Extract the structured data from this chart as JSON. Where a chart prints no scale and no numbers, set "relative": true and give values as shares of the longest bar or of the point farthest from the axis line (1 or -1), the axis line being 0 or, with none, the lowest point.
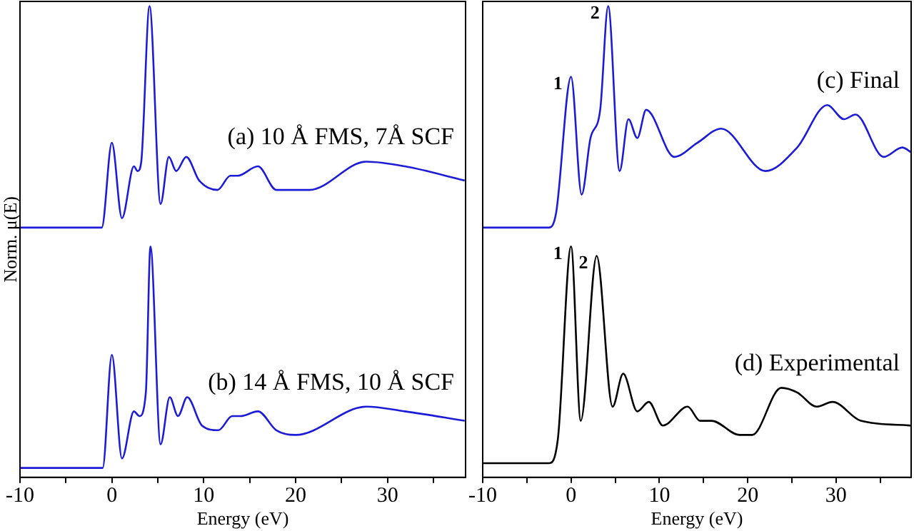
{
  "chart_data": [
    {
      "type": "line",
      "relative": true,
      "xlabel": "Energy (eV)",
      "ylabel": "Norm. μ(E)",
      "xlim": [
        -10,
        38.5
      ],
      "xticks": [
        -10,
        {
          "value": -5,
          "label": null
        },
        0,
        {
          "value": 5,
          "label": null
        },
        10,
        {
          "value": 15,
          "label": null
        },
        20,
        {
          "value": 25,
          "label": null
        },
        30,
        {
          "value": 35,
          "label": null
        }
      ],
      "tick_labels": "x",
      "series": [
        {
          "name": "(a) 10 Å FMS, 7Å SCF",
          "color": "#1c1cd8",
          "x": [
            -10,
            -1.1,
            0,
            1.1,
            2.4,
            2.8,
            3.2,
            4.1,
            5.3,
            6.2,
            7.0,
            8.1,
            9.5,
            11.5,
            12.9,
            13.7,
            15.9,
            17.9,
            21.5,
            27.7,
            31.9,
            38.4
          ],
          "values": [
            0.53,
            0.53,
            0.71,
            0.55,
            0.66,
            0.65,
            0.67,
            1,
            0.58,
            0.68,
            0.65,
            0.68,
            0.63,
            0.61,
            0.64,
            0.64,
            0.66,
            0.61,
            0.61,
            0.67,
            0.66,
            0.63
          ]
        },
        {
          "name": "(b) 14 Å FMS, 10 Å SCF",
          "color": "#1c1cd8",
          "x": [
            -10,
            -1.0,
            0,
            1.1,
            2.4,
            3.0,
            3.7,
            4.2,
            5.3,
            6.3,
            7.2,
            8.2,
            9.8,
            11.6,
            13.1,
            14.0,
            15.9,
            17.9,
            20.0,
            27.7,
            31.9,
            38.4
          ],
          "values": [
            0.02,
            0.02,
            0.26,
            0.04,
            0.14,
            0.13,
            0.18,
            0.49,
            0.07,
            0.17,
            0.13,
            0.17,
            0.11,
            0.1,
            0.13,
            0.13,
            0.14,
            0.1,
            0.09,
            0.15,
            0.14,
            0.12
          ]
        }
      ]
    },
    {
      "type": "line",
      "relative": true,
      "xlabel": "Energy (eV)",
      "xlim": [
        -10,
        38.5
      ],
      "xticks": [
        -10,
        {
          "value": -5,
          "label": null
        },
        0,
        {
          "value": 5,
          "label": null
        },
        10,
        {
          "value": 15,
          "label": null
        },
        20,
        {
          "value": 25,
          "label": null
        },
        30,
        {
          "value": 35,
          "label": null
        }
      ],
      "tick_labels": "x",
      "series": [
        {
          "name": "(c) Final",
          "color": "#1c1cd8",
          "x": [
            -10,
            -2.5,
            -1.7,
            0,
            1.2,
            2.2,
            3.3,
            4.2,
            5.5,
            6.5,
            7.5,
            8.5,
            11.7,
            14.3,
            17.0,
            22.0,
            25.6,
            29.0,
            30.9,
            32.2,
            35.4,
            37.5,
            38.5
          ],
          "values": [
            0.53,
            0.53,
            0.56,
            0.85,
            0.6,
            0.72,
            0.78,
            1,
            0.65,
            0.76,
            0.72,
            0.78,
            0.68,
            0.71,
            0.74,
            0.65,
            0.7,
            0.79,
            0.76,
            0.77,
            0.68,
            0.7,
            0.69
          ]
        },
        {
          "name": "(d) Experimental",
          "color": "#000000",
          "x": [
            -10,
            -2.5,
            -1.5,
            0,
            1.1,
            2.9,
            4.7,
            5.9,
            7.5,
            8.8,
            10.4,
            13.2,
            14.6,
            15.9,
            19.1,
            20.5,
            23.8,
            25.6,
            27.8,
            29.6,
            32.8,
            38.5
          ],
          "values": [
            0.03,
            0.03,
            0.08,
            0.49,
            0.12,
            0.47,
            0.15,
            0.22,
            0.14,
            0.16,
            0.11,
            0.15,
            0.12,
            0.12,
            0.09,
            0.09,
            0.19,
            0.18,
            0.15,
            0.16,
            0.12,
            0.11
          ]
        }
      ],
      "annotations": [
        {
          "text": "1",
          "x": 0,
          "y": 0.85
        },
        {
          "text": "2",
          "x": 4.2,
          "y": 1
        },
        {
          "text": "1",
          "x": 0,
          "y": 0.49
        },
        {
          "text": "2",
          "x": 2.9,
          "y": 0.47
        }
      ]
    }
  ]
}
